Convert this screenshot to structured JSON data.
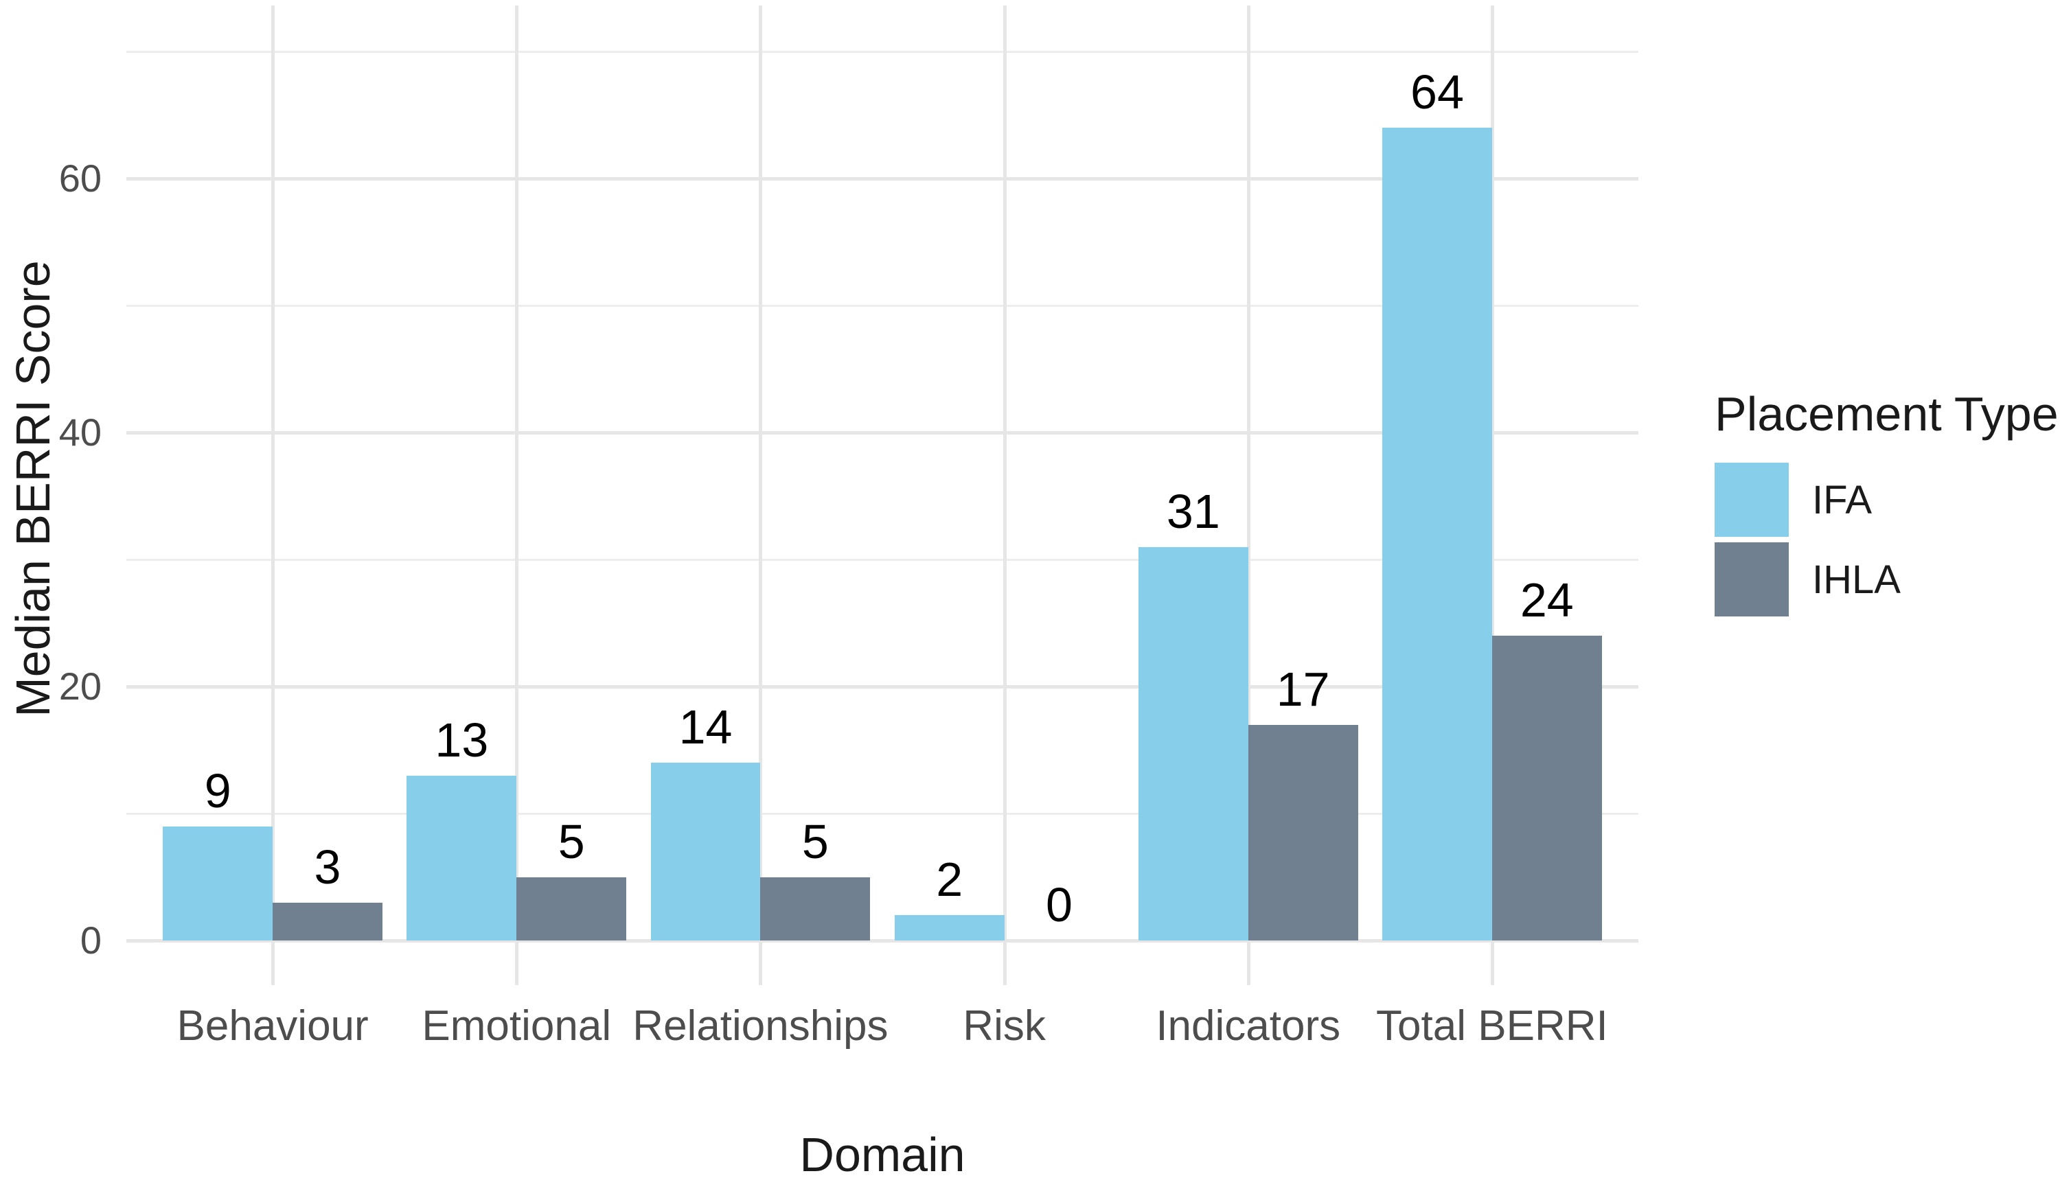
{
  "chart_data": {
    "type": "bar",
    "title": "",
    "xlabel": "Domain",
    "ylabel": "Median BERRI Score",
    "legend_title": "Placement Type",
    "legend_position": "right",
    "grid": true,
    "categories": [
      "Behaviour",
      "Emotional",
      "Relationships",
      "Risk",
      "Indicators",
      "Total BERRI"
    ],
    "series": [
      {
        "name": "IFA",
        "color": "#87CEEB",
        "values": [
          9,
          13,
          14,
          2,
          31,
          64
        ]
      },
      {
        "name": "IHLA",
        "color": "#708090",
        "values": [
          3,
          5,
          5,
          0,
          17,
          24
        ]
      }
    ],
    "y_ticks": [
      0,
      20,
      40,
      60
    ],
    "y_minor_ticks": [
      10,
      30,
      50,
      70
    ],
    "ylim": [
      0,
      70
    ],
    "bar_value_labels_shown": true,
    "colors": {
      "background": "#FFFFFF",
      "grid_major": "#E6E6E6",
      "grid_minor": "#EDEDED",
      "axis_text": "#4D4D4D",
      "title_text": "#1A1A1A",
      "value_label_text": "#000000"
    }
  }
}
